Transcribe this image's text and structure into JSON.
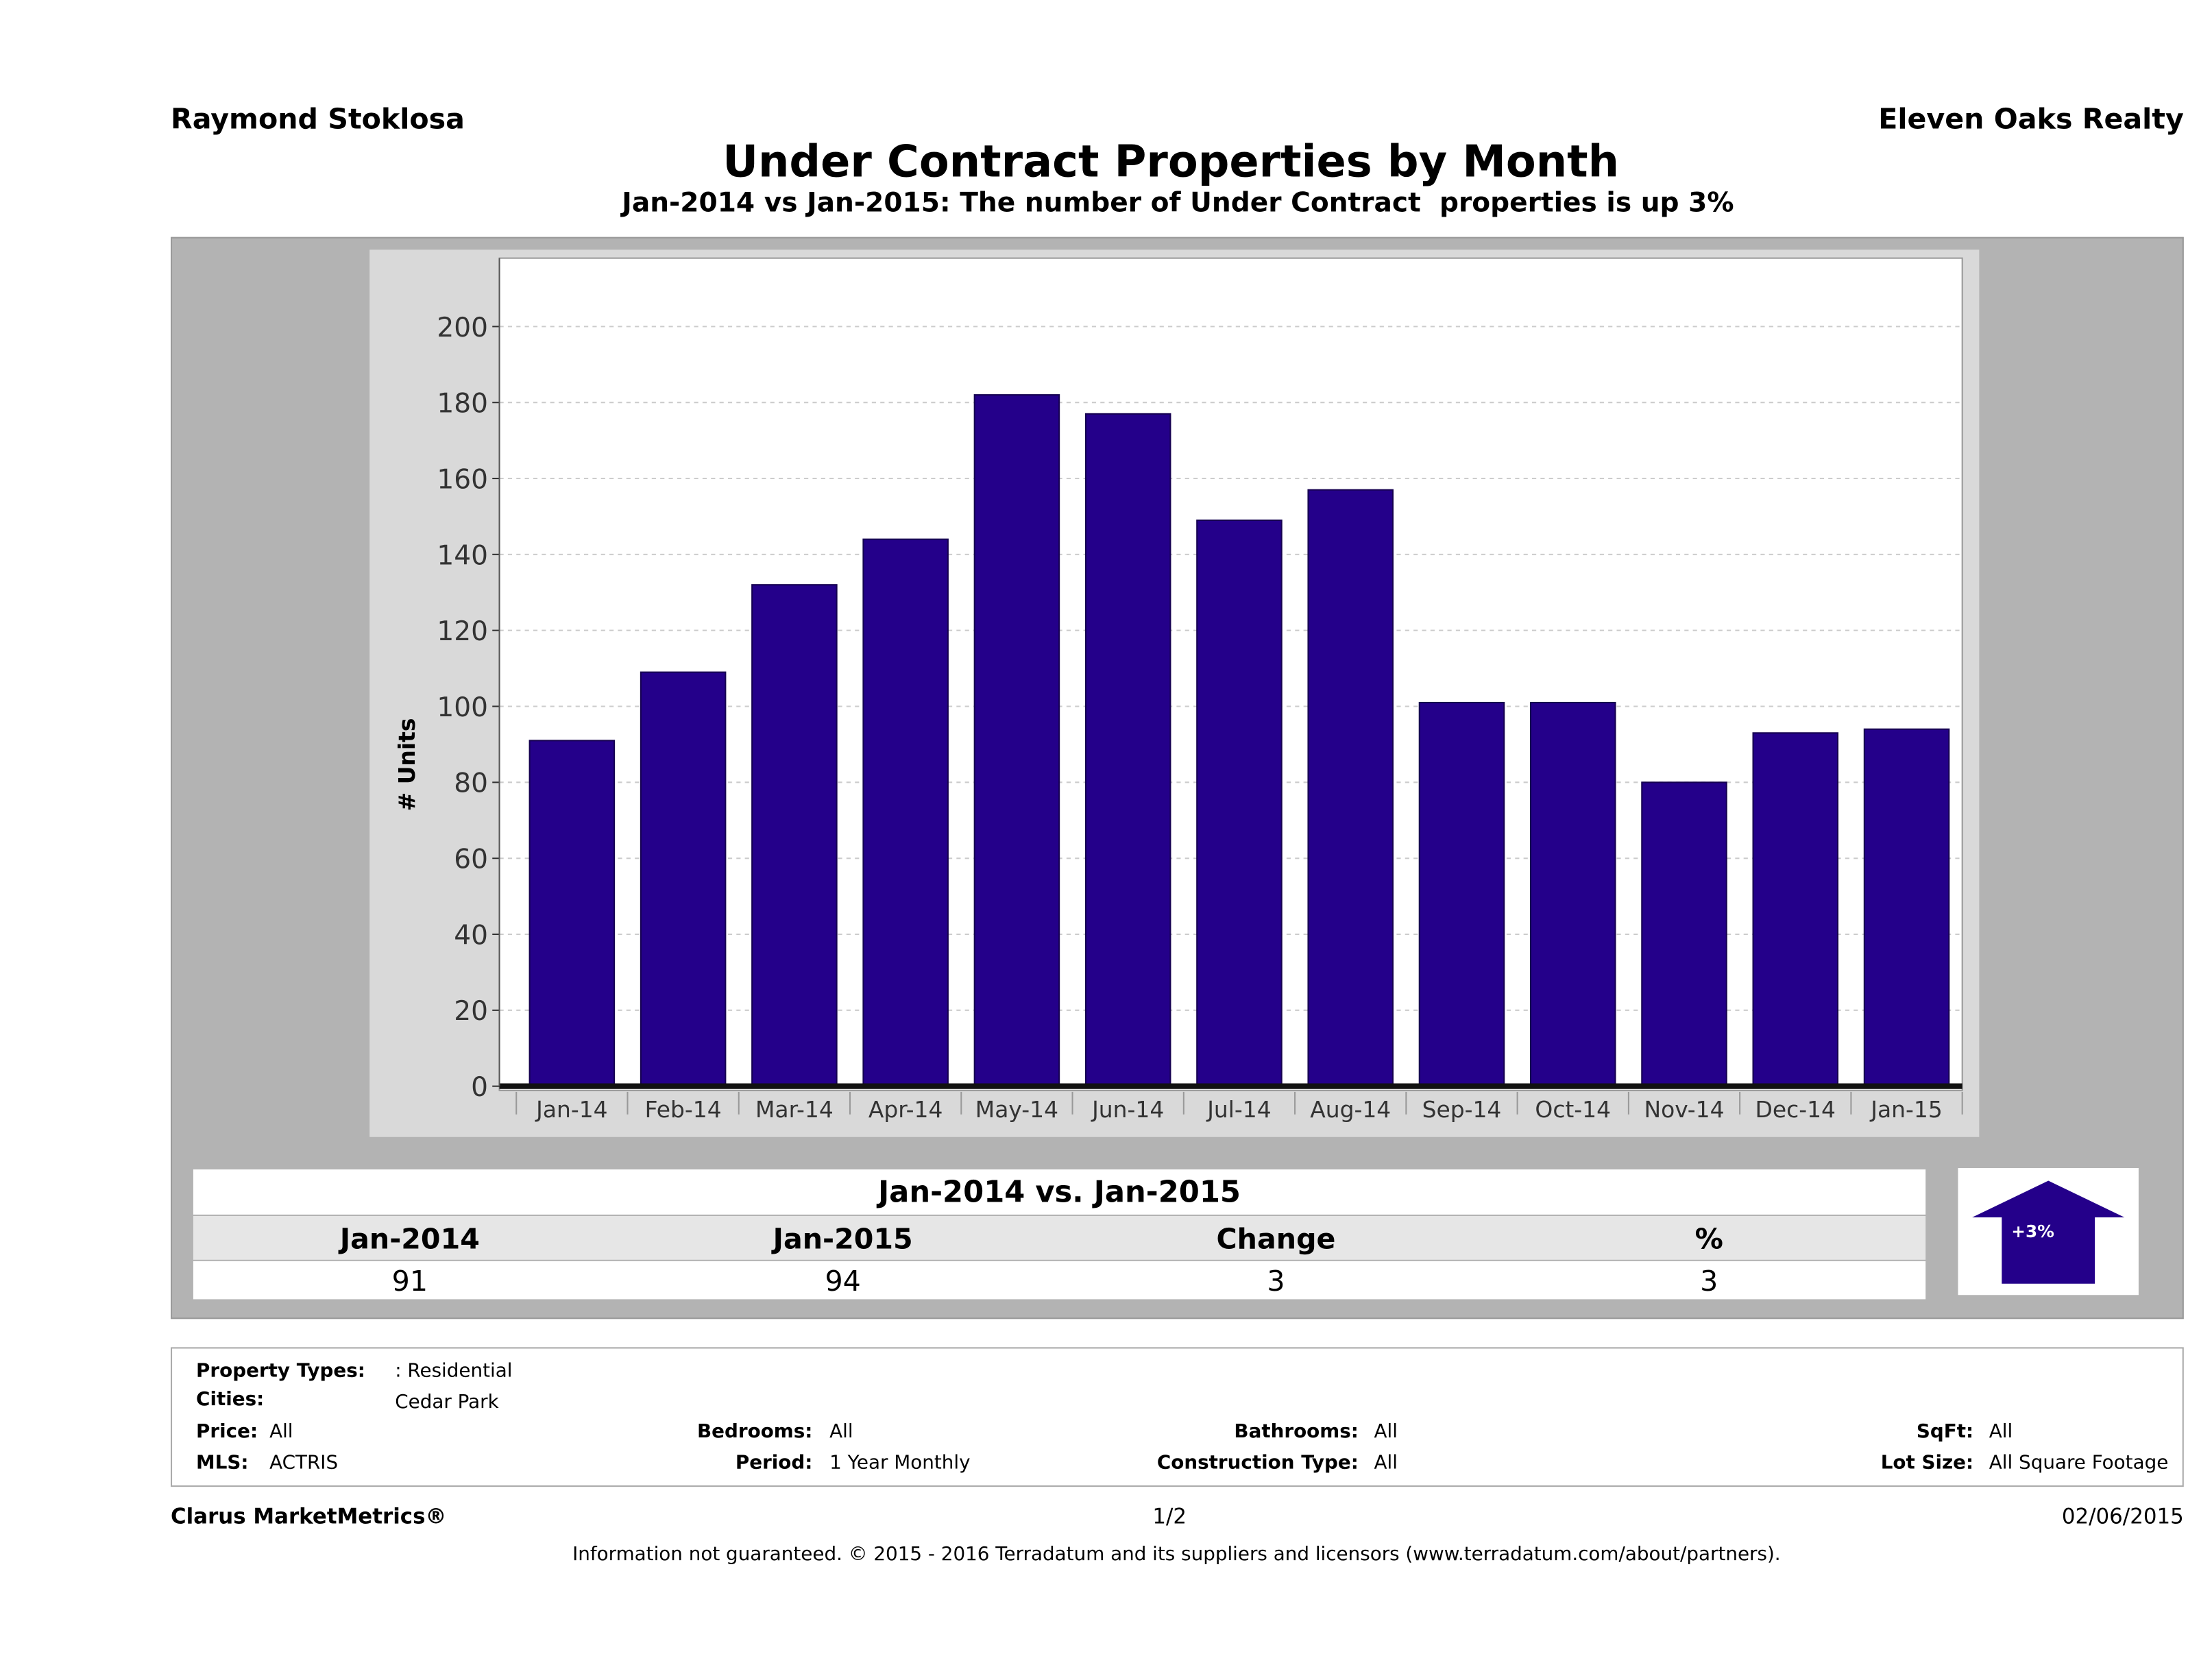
{
  "header": {
    "agent": "Raymond Stoklosa",
    "company": "Eleven Oaks Realty"
  },
  "chart_data": {
    "type": "bar",
    "title": "Under Contract Properties by Month",
    "subtitle": "Jan-2014 vs Jan-2015: The number of Under Contract  properties is up 3%",
    "ylabel": "# Units",
    "xlabel": "",
    "categories": [
      "Jan-14",
      "Feb-14",
      "Mar-14",
      "Apr-14",
      "May-14",
      "Jun-14",
      "Jul-14",
      "Aug-14",
      "Sep-14",
      "Oct-14",
      "Nov-14",
      "Dec-14",
      "Jan-15"
    ],
    "values": [
      91,
      109,
      132,
      144,
      182,
      177,
      149,
      157,
      101,
      101,
      80,
      93,
      94
    ],
    "ylim": [
      0,
      218
    ],
    "yticks": [
      0,
      20,
      40,
      60,
      80,
      100,
      120,
      140,
      160,
      180,
      200
    ],
    "grid": true,
    "bar_color": "#24008a"
  },
  "summary": {
    "heading": "Jan-2014 vs. Jan-2015",
    "columns": [
      "Jan-2014",
      "Jan-2015",
      "Change",
      "%"
    ],
    "values": [
      "91",
      "94",
      "3",
      "3"
    ],
    "badge": "+3%",
    "arrow": "up-arrow-icon"
  },
  "info": {
    "property_types_label": "Property Types:",
    "property_types": ": Residential",
    "cities_label": "Cities:",
    "cities": "Cedar Park",
    "price_label": "Price:",
    "price": "All",
    "bedrooms_label": "Bedrooms:",
    "bedrooms": "All",
    "bathrooms_label": "Bathrooms:",
    "bathrooms": "All",
    "sqft_label": "SqFt:",
    "sqft": "All",
    "mls_label": "MLS:",
    "mls": "ACTRIS",
    "period_label": "Period:",
    "period": "1 Year Monthly",
    "construction_label": "Construction Type:",
    "construction": "All",
    "lot_label": "Lot Size:",
    "lot": "All Square Footage"
  },
  "footer": {
    "brand": "Clarus MarketMetrics®",
    "page": "1/2",
    "date": "02/06/2015",
    "disclaimer": "Information not guaranteed. © 2015 - 2016 Terradatum and its suppliers and licensors (www.terradatum.com/about/partners)."
  }
}
